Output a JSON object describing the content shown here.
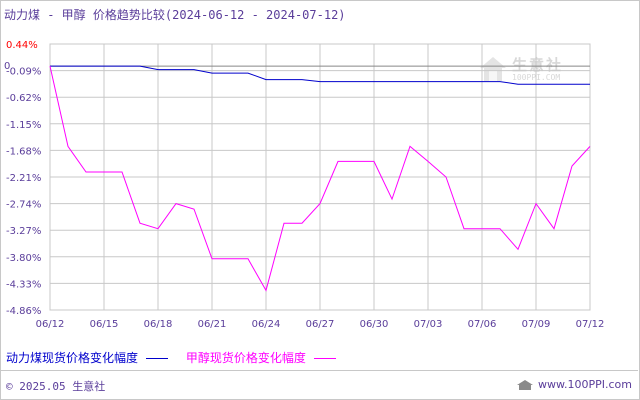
{
  "header": {
    "title_main": "动力煤 - 甲醇 价格趋势比较",
    "title_range": "(2024-06-12 - 2024-07-12)"
  },
  "legend": {
    "series1": "动力煤现货价格变化幅度",
    "series2": "甲醇现货价格变化幅度"
  },
  "footer": {
    "copyright": "© 2025.05 生意社",
    "site": "www.100PPI.com"
  },
  "watermark": {
    "name": "生意社",
    "url": "100PPI.COM"
  },
  "colors": {
    "series1": "#0000cc",
    "series2": "#ff00ff",
    "axis_text": "#5a3d9a",
    "top_tick": "#ff0000",
    "grid": "#c8c8c8"
  },
  "chart_data": {
    "type": "line",
    "title": "动力煤 - 甲醇 价格趋势比较(2024-06-12 - 2024-07-12)",
    "ylim": [
      -4.86,
      0.44
    ],
    "y_ticks": [
      "0.44%",
      "-0.09%",
      "-0.62%",
      "-1.15%",
      "-1.68%",
      "-2.21%",
      "-2.74%",
      "-3.27%",
      "-3.80%",
      "-4.33%",
      "-4.86%"
    ],
    "y_tick_values": [
      0.44,
      -0.09,
      -0.62,
      -1.15,
      -1.68,
      -2.21,
      -2.74,
      -3.27,
      -3.8,
      -4.33,
      -4.86
    ],
    "zero_label": "0",
    "x_ticks": [
      "06/12",
      "06/15",
      "06/18",
      "06/21",
      "06/24",
      "06/27",
      "06/30",
      "07/03",
      "07/06",
      "07/09",
      "07/12"
    ],
    "x_tick_days": [
      0,
      3,
      6,
      9,
      12,
      15,
      18,
      21,
      24,
      27,
      30
    ],
    "x_days_total": 30,
    "grid": true,
    "legend_position": "bottom",
    "series": [
      {
        "name": "动力煤现货价格变化幅度",
        "x": [
          0,
          1,
          2,
          3,
          4,
          5,
          6,
          7,
          8,
          9,
          10,
          11,
          12,
          13,
          14,
          15,
          16,
          17,
          18,
          19,
          20,
          21,
          22,
          23,
          24,
          25,
          26,
          27,
          28,
          29,
          30
        ],
        "values": [
          0,
          0,
          0,
          0,
          0,
          0,
          -0.07,
          -0.07,
          -0.07,
          -0.14,
          -0.14,
          -0.14,
          -0.27,
          -0.27,
          -0.27,
          -0.31,
          -0.31,
          -0.31,
          -0.31,
          -0.31,
          -0.31,
          -0.31,
          -0.31,
          -0.31,
          -0.31,
          -0.31,
          -0.36,
          -0.36,
          -0.36,
          -0.36,
          -0.36
        ]
      },
      {
        "name": "甲醇现货价格变化幅度",
        "x": [
          0,
          1,
          2,
          3,
          4,
          5,
          6,
          7,
          8,
          9,
          10,
          11,
          12,
          13,
          14,
          15,
          16,
          17,
          18,
          19,
          20,
          21,
          22,
          23,
          24,
          25,
          26,
          27,
          28,
          29,
          30
        ],
        "values": [
          0,
          -1.6,
          -2.11,
          -2.11,
          -2.11,
          -3.13,
          -3.24,
          -2.74,
          -2.85,
          -3.84,
          -3.84,
          -3.84,
          -4.47,
          -3.13,
          -3.13,
          -2.74,
          -1.9,
          -1.9,
          -1.9,
          -2.65,
          -1.6,
          -1.9,
          -2.21,
          -3.24,
          -3.24,
          -3.24,
          -3.65,
          -2.74,
          -3.24,
          -1.99,
          -1.6
        ]
      }
    ]
  }
}
